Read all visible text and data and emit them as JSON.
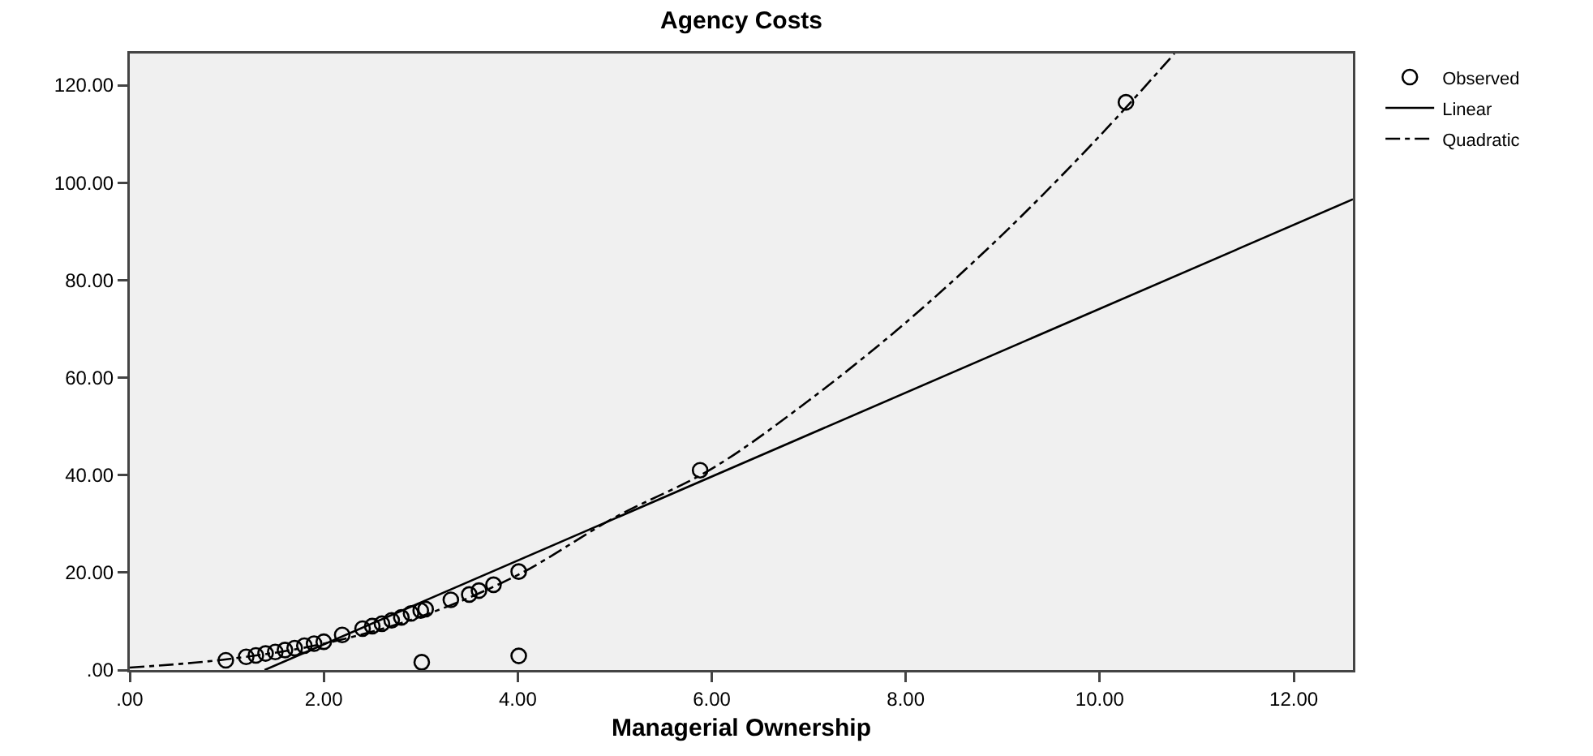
{
  "chart_data": {
    "type": "scatter",
    "title": "Agency Costs",
    "xlabel": "Managerial Ownership",
    "xlim": [
      0,
      12.61
    ],
    "ylim": [
      0,
      126.5
    ],
    "xticks": [
      {
        "value": 0,
        "label": ".00"
      },
      {
        "value": 2,
        "label": "2.00"
      },
      {
        "value": 4,
        "label": "4.00"
      },
      {
        "value": 6,
        "label": "6.00"
      },
      {
        "value": 8,
        "label": "8.00"
      },
      {
        "value": 10,
        "label": "10.00"
      },
      {
        "value": 12,
        "label": "12.00"
      }
    ],
    "yticks": [
      {
        "value": 0,
        "label": ".00"
      },
      {
        "value": 20,
        "label": "20.00"
      },
      {
        "value": 40,
        "label": "40.00"
      },
      {
        "value": 60,
        "label": "60.00"
      },
      {
        "value": 80,
        "label": "80.00"
      },
      {
        "value": 100,
        "label": "100.00"
      },
      {
        "value": 120,
        "label": "120.00"
      }
    ],
    "grid": false,
    "legend": "top right",
    "series": [
      {
        "name": "Observed",
        "marker": "circle",
        "color": "#000000",
        "x": [
          0.99,
          1.2,
          1.3,
          1.4,
          1.5,
          1.6,
          1.7,
          1.8,
          1.9,
          2.0,
          2.19,
          2.4,
          2.5,
          2.6,
          2.7,
          2.8,
          2.9,
          3.0,
          3.05,
          3.01,
          3.31,
          3.5,
          3.6,
          3.75,
          4.01,
          4.01,
          5.88,
          10.27
        ],
        "values": [
          2.0,
          2.7,
          3.0,
          3.4,
          3.7,
          4.1,
          4.5,
          5.0,
          5.4,
          5.8,
          7.2,
          8.5,
          9.0,
          9.5,
          10.2,
          10.8,
          11.6,
          12.2,
          12.5,
          1.6,
          14.4,
          15.5,
          16.3,
          17.5,
          20.2,
          2.9,
          41,
          116.5
        ]
      },
      {
        "name": "Linear",
        "type": "line",
        "marker": "none",
        "line_style": "solid",
        "color": "#000000",
        "x": [
          1.39,
          12.61
        ],
        "values": [
          0,
          96.6
        ]
      },
      {
        "name": "Quadratic",
        "type": "line",
        "marker": "none",
        "line_style": "dashed",
        "color": "#000000",
        "x": [
          0,
          1,
          2,
          3,
          4,
          5,
          6,
          7,
          8,
          9,
          10,
          10.77
        ],
        "values": [
          0.5,
          2.2,
          5.4,
          11.0,
          19.5,
          31.3,
          41.3,
          55.3,
          71.3,
          89.4,
          109.6,
          126.5
        ]
      }
    ]
  }
}
